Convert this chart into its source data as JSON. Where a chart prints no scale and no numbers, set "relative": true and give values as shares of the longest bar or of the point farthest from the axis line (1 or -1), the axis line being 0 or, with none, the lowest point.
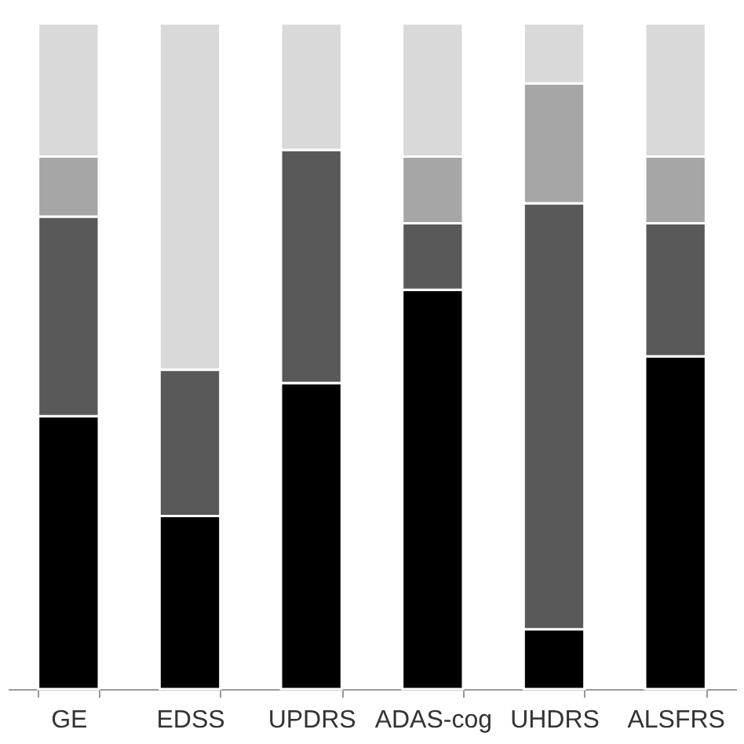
{
  "chart_data": {
    "type": "bar",
    "stacked": true,
    "relative": true,
    "grid": false,
    "categories": [
      "GE",
      "EDSS",
      "UPDRS",
      "ADAS-cog",
      "UHDRS",
      "ALSFRS"
    ],
    "series": [
      {
        "color": "#000000",
        "values": [
          0.41,
          0.26,
          0.46,
          0.6,
          0.09,
          0.5
        ]
      },
      {
        "color": "#595959",
        "values": [
          0.3,
          0.22,
          0.35,
          0.1,
          0.64,
          0.2
        ]
      },
      {
        "color": "#a6a6a6",
        "values": [
          0.09,
          null,
          null,
          0.1,
          0.18,
          0.1
        ]
      },
      {
        "color": "#d9d9d9",
        "values": [
          0.2,
          0.52,
          0.19,
          0.2,
          0.09,
          0.2
        ]
      }
    ]
  }
}
